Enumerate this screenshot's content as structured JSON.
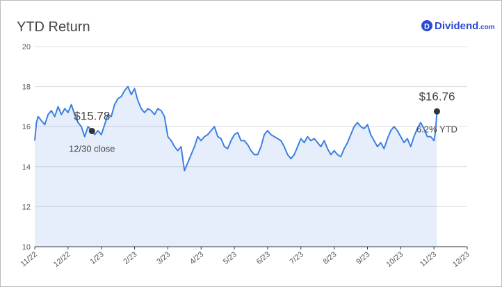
{
  "chart_data": {
    "type": "line",
    "title": "YTD Return",
    "brand": {
      "icon": "D",
      "name": "Dividend",
      "suffix": ".com"
    },
    "x": [
      0.0,
      0.05,
      0.1,
      0.2,
      0.3,
      0.4,
      0.5,
      0.6,
      0.7,
      0.8,
      0.9,
      1.0,
      1.1,
      1.2,
      1.3,
      1.4,
      1.5,
      1.6,
      1.72,
      1.8,
      1.9,
      2.0,
      2.1,
      2.2,
      2.3,
      2.4,
      2.5,
      2.6,
      2.7,
      2.8,
      2.9,
      3.0,
      3.1,
      3.2,
      3.3,
      3.4,
      3.5,
      3.6,
      3.7,
      3.8,
      3.9,
      4.0,
      4.1,
      4.2,
      4.3,
      4.4,
      4.5,
      4.6,
      4.7,
      4.8,
      4.9,
      5.0,
      5.1,
      5.2,
      5.3,
      5.4,
      5.5,
      5.6,
      5.7,
      5.8,
      5.9,
      6.0,
      6.1,
      6.2,
      6.3,
      6.4,
      6.5,
      6.6,
      6.7,
      6.8,
      6.9,
      7.0,
      7.1,
      7.2,
      7.3,
      7.4,
      7.5,
      7.6,
      7.7,
      7.8,
      7.9,
      8.0,
      8.1,
      8.2,
      8.3,
      8.4,
      8.5,
      8.6,
      8.7,
      8.8,
      8.9,
      9.0,
      9.1,
      9.2,
      9.3,
      9.4,
      9.5,
      9.6,
      9.7,
      9.8,
      9.9,
      10.0,
      10.1,
      10.2,
      10.3,
      10.4,
      10.5,
      10.6,
      10.7,
      10.8,
      10.9,
      11.0,
      11.1,
      11.2,
      11.3,
      11.4,
      11.5,
      11.6,
      11.7,
      11.8,
      11.9,
      12.0,
      12.05,
      12.09
    ],
    "series": [
      {
        "name": "YTD Return",
        "color": "#3c7fe0",
        "values": [
          15.3,
          16.2,
          16.5,
          16.3,
          16.1,
          16.6,
          16.8,
          16.5,
          17.0,
          16.6,
          16.9,
          16.7,
          17.1,
          16.6,
          16.2,
          16.0,
          15.5,
          16.0,
          15.78,
          15.6,
          15.8,
          15.6,
          16.1,
          16.6,
          16.5,
          17.1,
          17.4,
          17.5,
          17.8,
          18.0,
          17.6,
          17.9,
          17.3,
          16.9,
          16.7,
          16.9,
          16.8,
          16.6,
          16.9,
          16.8,
          16.5,
          15.5,
          15.3,
          15.0,
          14.8,
          15.0,
          13.8,
          14.2,
          14.6,
          15.0,
          15.5,
          15.3,
          15.5,
          15.6,
          15.8,
          16.0,
          15.5,
          15.4,
          15.0,
          14.9,
          15.3,
          15.6,
          15.7,
          15.3,
          15.3,
          15.1,
          14.8,
          14.6,
          14.6,
          15.0,
          15.6,
          15.8,
          15.6,
          15.5,
          15.4,
          15.3,
          15.0,
          14.6,
          14.4,
          14.6,
          15.0,
          15.4,
          15.2,
          15.5,
          15.3,
          15.4,
          15.2,
          15.0,
          15.3,
          14.9,
          14.6,
          14.8,
          14.6,
          14.5,
          14.9,
          15.2,
          15.6,
          16.0,
          16.2,
          16.0,
          15.9,
          16.1,
          15.6,
          15.3,
          15.0,
          15.2,
          14.9,
          15.4,
          15.8,
          16.0,
          15.8,
          15.5,
          15.2,
          15.4,
          15.0,
          15.5,
          15.9,
          16.2,
          15.9,
          15.5,
          15.5,
          15.3,
          15.8,
          16.76
        ]
      }
    ],
    "annotations": [
      {
        "x": 1.72,
        "value": 15.78,
        "value_label": "$15.78",
        "note": "12/30 close"
      },
      {
        "x": 12.09,
        "value": 16.76,
        "value_label": "$16.76",
        "note": "6.2% YTD"
      }
    ],
    "xlim": [
      0,
      13
    ],
    "xticks": [
      {
        "value": 0,
        "label": "11/22"
      },
      {
        "value": 1,
        "label": "12/22"
      },
      {
        "value": 2,
        "label": "1/23"
      },
      {
        "value": 3,
        "label": "2/23"
      },
      {
        "value": 4,
        "label": "3/23"
      },
      {
        "value": 5,
        "label": "4/23"
      },
      {
        "value": 6,
        "label": "5/23"
      },
      {
        "value": 7,
        "label": "6/23"
      },
      {
        "value": 8,
        "label": "7/23"
      },
      {
        "value": 9,
        "label": "8/23"
      },
      {
        "value": 10,
        "label": "9/23"
      },
      {
        "value": 11,
        "label": "10/23"
      },
      {
        "value": 12,
        "label": "11/23"
      },
      {
        "value": 13,
        "label": "12/23"
      }
    ],
    "ylim": [
      10,
      20
    ],
    "yticks": [
      10,
      12,
      14,
      16,
      18,
      20
    ],
    "grid": true
  }
}
